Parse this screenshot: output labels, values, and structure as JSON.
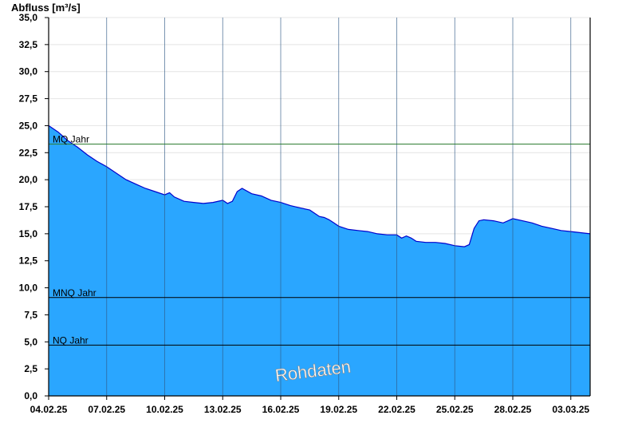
{
  "chart_data": {
    "type": "area",
    "ylabel": "Abfluss [m³/s]",
    "watermark": "Rohdaten",
    "ylim": [
      0,
      35
    ],
    "y_ticks": [
      0,
      2.5,
      5,
      7.5,
      10,
      12.5,
      15,
      17.5,
      20,
      22.5,
      25,
      27.5,
      30,
      32.5,
      35
    ],
    "y_tick_labels": [
      "0,0",
      "2,5",
      "5,0",
      "7,5",
      "10,0",
      "12,5",
      "15,0",
      "17,5",
      "20,0",
      "22,5",
      "25,0",
      "27,5",
      "30,0",
      "32,5",
      "35,0"
    ],
    "x_range": [
      "04.02.25",
      "03.03.25"
    ],
    "x_ticks": [
      "04.02.25",
      "07.02.25",
      "10.02.25",
      "13.02.25",
      "16.02.25",
      "19.02.25",
      "22.02.25",
      "25.02.25",
      "28.02.25",
      "03.03.25"
    ],
    "x_ticks_day_offset": [
      0,
      3,
      6,
      9,
      12,
      15,
      18,
      21,
      24,
      27
    ],
    "grid": true,
    "colors": {
      "fill": "#2aa6ff",
      "line": "#0000cc",
      "mq_line": "#2e7d32",
      "ref_line": "#000000"
    },
    "reference_lines": [
      {
        "label": "MQ Jahr",
        "value": 23.3
      },
      {
        "label": "MNQ Jahr",
        "value": 9.1
      },
      {
        "label": "NQ Jahr",
        "value": 4.7
      }
    ],
    "series": [
      {
        "day_offset": [
          0,
          0.25,
          0.5,
          0.75,
          1,
          1.5,
          2,
          2.5,
          3,
          3.5,
          4,
          4.5,
          5,
          5.5,
          6,
          6.25,
          6.5,
          7,
          7.5,
          8,
          8.5,
          9,
          9.25,
          9.5,
          9.75,
          10,
          10.5,
          11,
          11.25,
          11.5,
          12,
          12.5,
          13,
          13.5,
          14,
          14.25,
          14.5,
          14.75,
          15,
          15.5,
          16,
          16.5,
          17,
          17.5,
          18,
          18.25,
          18.5,
          18.75,
          19,
          19.5,
          20,
          20.5,
          21,
          21.5,
          21.75,
          22,
          22.25,
          22.5,
          23,
          23.5,
          24,
          24.5,
          25,
          25.5,
          26,
          26.5,
          27,
          27.5,
          28
        ],
        "values": [
          25,
          24.7,
          24.4,
          24.0,
          23.6,
          23.0,
          22.3,
          21.7,
          21.2,
          20.6,
          20.0,
          19.6,
          19.2,
          18.9,
          18.6,
          18.8,
          18.4,
          18.0,
          17.9,
          17.8,
          17.9,
          18.1,
          17.8,
          18.0,
          18.9,
          19.2,
          18.7,
          18.5,
          18.3,
          18.1,
          17.9,
          17.6,
          17.4,
          17.2,
          16.6,
          16.5,
          16.3,
          16.0,
          15.7,
          15.4,
          15.3,
          15.2,
          15.0,
          14.9,
          14.9,
          14.6,
          14.8,
          14.6,
          14.3,
          14.2,
          14.2,
          14.1,
          13.9,
          13.8,
          14.0,
          15.5,
          16.2,
          16.3,
          16.2,
          16.0,
          16.4,
          16.2,
          16.0,
          15.7,
          15.5,
          15.3,
          15.2,
          15.1,
          15.0
        ]
      }
    ]
  }
}
